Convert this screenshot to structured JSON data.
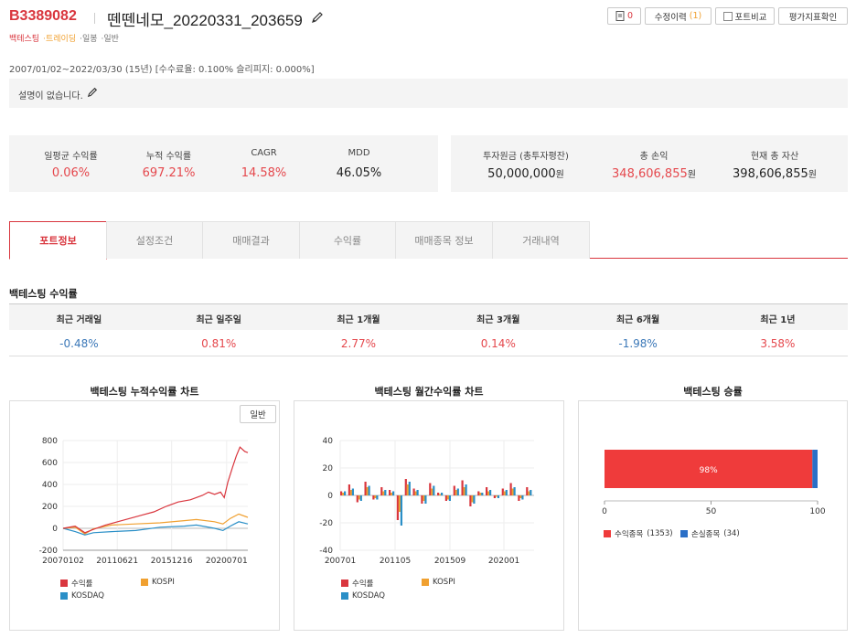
{
  "header": {
    "code": "B3389082",
    "name": "뗀뗀네모_20220331_203659",
    "tags": [
      "백테스팅",
      "·트레이딩",
      "·일봉",
      "·일반"
    ]
  },
  "top_buttons": {
    "count": "0",
    "history_label": "수정이력",
    "history_count": "(1)",
    "compare_label": "포트비교",
    "eval_label": "평가지표확인"
  },
  "period": "2007/01/02~2022/03/30 (15년) [수수료율: 0.100% 슬리피지: 0.000%]",
  "description": "설명이 없습니다.",
  "stats_left": [
    {
      "label": "일평균 수익률",
      "value": "0.06%",
      "color": "#e5484d"
    },
    {
      "label": "누적 수익률",
      "value": "697.21%",
      "color": "#e5484d"
    },
    {
      "label": "CAGR",
      "value": "14.58%",
      "color": "#e5484d"
    },
    {
      "label": "MDD",
      "value": "46.05%",
      "color": "#222222"
    }
  ],
  "stats_right": [
    {
      "label": "투자원금 (총투자평잔)",
      "value": "50,000,000",
      "unit": "원",
      "color": "#222222"
    },
    {
      "label": "총 손익",
      "value": "348,606,855",
      "unit": "원",
      "color": "#e5484d"
    },
    {
      "label": "현재 총 자산",
      "value": "398,606,855",
      "unit": "원",
      "color": "#222222"
    }
  ],
  "tabs": [
    "포트정보",
    "설정조건",
    "매매결과",
    "수익률",
    "매매종목 정보",
    "거래내역"
  ],
  "returns": {
    "title": "백테스팅 수익률",
    "headers": [
      "최근 거래일",
      "최근 일주일",
      "최근 1개월",
      "최근 3개월",
      "최근 6개월",
      "최근 1년"
    ],
    "values": [
      "-0.48%",
      "0.81%",
      "2.77%",
      "0.14%",
      "-1.98%",
      "3.58%"
    ],
    "colors": [
      "#3b78b8",
      "#e5484d",
      "#e5484d",
      "#e5484d",
      "#3b78b8",
      "#e5484d"
    ]
  },
  "charts": {
    "normal_button": "일반",
    "series_colors": {
      "수익률": "#d9363e",
      "KOSPI": "#f0a030",
      "KOSDAQ": "#2a8fc7"
    }
  },
  "chart_data": [
    {
      "type": "line",
      "title": "백테스팅 누적수익률 차트",
      "xlabel": "",
      "ylabel": "",
      "x_ticks": [
        "20070102",
        "20110621",
        "20151216",
        "20200701"
      ],
      "y_ticks": [
        -200,
        0,
        200,
        400,
        600,
        800
      ],
      "ylim": [
        -200,
        800
      ],
      "legend": "bottom",
      "series": [
        {
          "name": "수익률",
          "x": [
            2007.0,
            2008.0,
            2008.8,
            2009.5,
            2010.5,
            2011.5,
            2012.5,
            2013.5,
            2014.5,
            2015.5,
            2016.5,
            2017.5,
            2018.5,
            2019.0,
            2019.5,
            2020.0,
            2020.3,
            2020.6,
            2021.0,
            2021.3,
            2021.6,
            2022.0,
            2022.25
          ],
          "values": [
            0,
            20,
            -40,
            -10,
            30,
            60,
            90,
            120,
            150,
            200,
            240,
            260,
            300,
            330,
            310,
            330,
            280,
            420,
            560,
            660,
            740,
            700,
            690
          ]
        },
        {
          "name": "KOSPI",
          "x": [
            2007.0,
            2008.0,
            2008.8,
            2009.5,
            2011.0,
            2013.0,
            2015.0,
            2017.0,
            2018.0,
            2019.5,
            2020.2,
            2020.8,
            2021.5,
            2022.25
          ],
          "values": [
            0,
            10,
            -50,
            -5,
            30,
            40,
            50,
            70,
            80,
            60,
            40,
            90,
            130,
            100
          ]
        },
        {
          "name": "KOSDAQ",
          "x": [
            2007.0,
            2008.0,
            2008.8,
            2009.5,
            2011.0,
            2013.0,
            2015.0,
            2017.0,
            2018.0,
            2019.5,
            2020.2,
            2020.8,
            2021.5,
            2022.25
          ],
          "values": [
            0,
            -30,
            -60,
            -40,
            -30,
            -20,
            10,
            20,
            30,
            0,
            -20,
            20,
            60,
            40
          ]
        }
      ]
    },
    {
      "type": "bar",
      "title": "백테스팅 월간수익률 차트",
      "xlabel": "",
      "ylabel": "",
      "x_ticks": [
        "200701",
        "201105",
        "201509",
        "202001"
      ],
      "y_ticks": [
        -40,
        -20,
        0,
        20,
        40
      ],
      "ylim": [
        -40,
        40
      ],
      "legend": "bottom",
      "series": [
        {
          "name": "수익률",
          "values": [
            3,
            8,
            -5,
            10,
            -3,
            6,
            4,
            -18,
            12,
            5,
            -6,
            9,
            2,
            -4,
            7,
            11,
            -8,
            3,
            6,
            -2,
            5,
            9,
            -4,
            6
          ]
        },
        {
          "name": "KOSPI",
          "values": [
            2,
            4,
            -3,
            6,
            -2,
            3,
            2,
            -12,
            8,
            3,
            -4,
            5,
            1,
            -3,
            4,
            6,
            -5,
            2,
            3,
            -1,
            3,
            5,
            -2,
            3
          ]
        },
        {
          "name": "KOSDAQ",
          "values": [
            3,
            5,
            -4,
            7,
            -3,
            4,
            3,
            -22,
            10,
            4,
            -6,
            7,
            2,
            -4,
            5,
            8,
            -6,
            2,
            4,
            -2,
            4,
            6,
            -3,
            4
          ]
        }
      ]
    },
    {
      "type": "bar",
      "title": "백테스팅 승률",
      "xlabel": "",
      "ylabel": "",
      "x_ticks": [
        0,
        50,
        100
      ],
      "xlim": [
        0,
        100
      ],
      "data_label": "98%",
      "legend": "bottom",
      "series": [
        {
          "name": "수익종목",
          "count": "(1353)",
          "value": 97.55,
          "color": "#ef3b3b"
        },
        {
          "name": "손실종목",
          "count": "(34)",
          "value": 2.45,
          "color": "#2a6fc7"
        }
      ]
    }
  ]
}
